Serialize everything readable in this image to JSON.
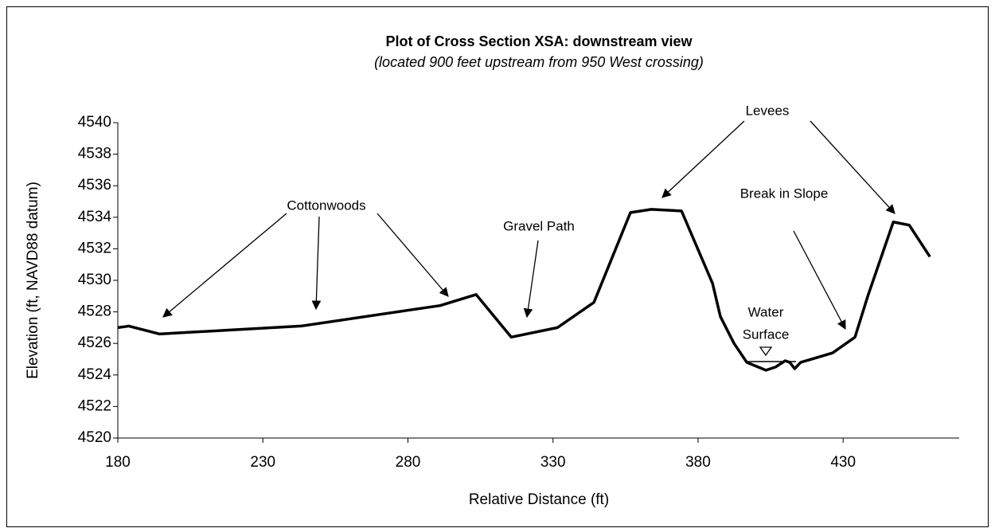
{
  "chart_data": {
    "type": "line",
    "title": "Plot of Cross Section XSA: downstream view",
    "subtitle": "(located 900 feet upstream from 950 West crossing)",
    "x_label": "Relative Distance (ft)",
    "y_label": "Elevation (ft, NAVD88 datum)",
    "x": [
      180,
      183.8,
      194.3,
      243.1,
      291.1,
      303.5,
      315.6,
      331.5,
      344.1,
      356.7,
      363.9,
      374.3,
      385.0,
      387.7,
      392.4,
      396.8,
      403.4,
      406.7,
      410.0,
      411.6,
      413.3,
      415.4,
      420.9,
      426.4,
      434.1,
      438.5,
      447.3,
      452.8,
      459.9
    ],
    "series": [
      {
        "name": "Cross Section XSA",
        "color": "#000000",
        "values": [
          4527.0,
          4527.1,
          4526.6,
          4527.1,
          4528.4,
          4529.1,
          4526.4,
          4527.0,
          4528.6,
          4534.3,
          4534.5,
          4534.4,
          4529.8,
          4527.7,
          4526.0,
          4524.8,
          4524.3,
          4524.5,
          4524.9,
          4524.8,
          4524.4,
          4524.8,
          4525.1,
          4525.4,
          4526.4,
          4529.0,
          4533.7,
          4533.5,
          4531.5
        ]
      }
    ],
    "xlim": [
      180,
      470
    ],
    "ylim": [
      4520,
      4540
    ],
    "xticks": [
      180,
      230,
      280,
      330,
      380,
      430
    ],
    "yticks": [
      4520,
      4522,
      4524,
      4526,
      4528,
      4530,
      4532,
      4534,
      4536,
      4538,
      4540
    ],
    "grid": false,
    "annotations": [
      "Levees",
      "Cottonwoods",
      "Gravel Path",
      "Break in Slope",
      [
        "Water",
        "Surface"
      ]
    ]
  }
}
